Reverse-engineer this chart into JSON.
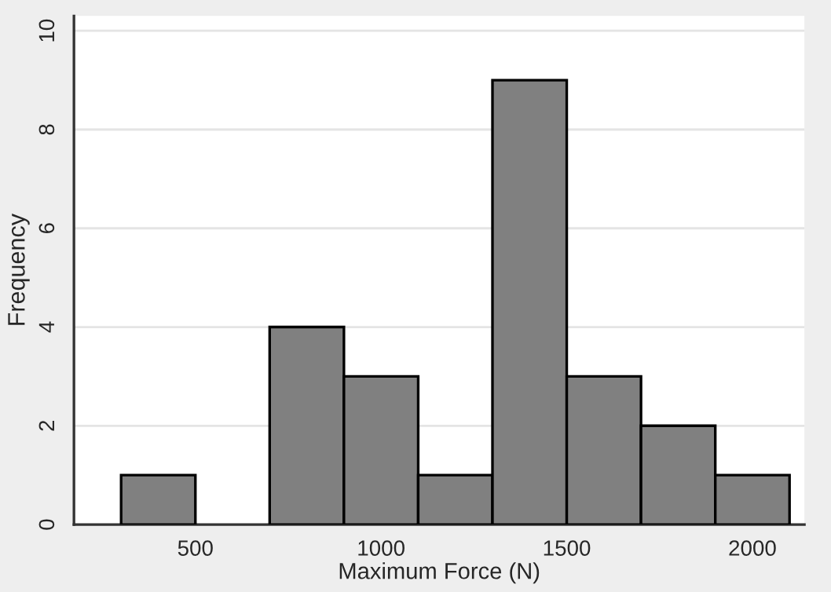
{
  "chart_data": {
    "type": "histogram",
    "xlabel": "Maximum Force (N)",
    "ylabel": "Frequency",
    "bins": [
      300,
      500,
      700,
      900,
      1100,
      1300,
      1500,
      1700,
      1900,
      2100
    ],
    "values": [
      1,
      0,
      4,
      3,
      1,
      9,
      3,
      2,
      1
    ],
    "color": "#808080",
    "xlim": [
      173,
      2140
    ],
    "xticks": [
      500,
      1000,
      1500,
      2000
    ],
    "ylim": [
      0,
      10.3
    ],
    "yticks": [
      0,
      2,
      4,
      6,
      8,
      10
    ],
    "grid": "y"
  }
}
